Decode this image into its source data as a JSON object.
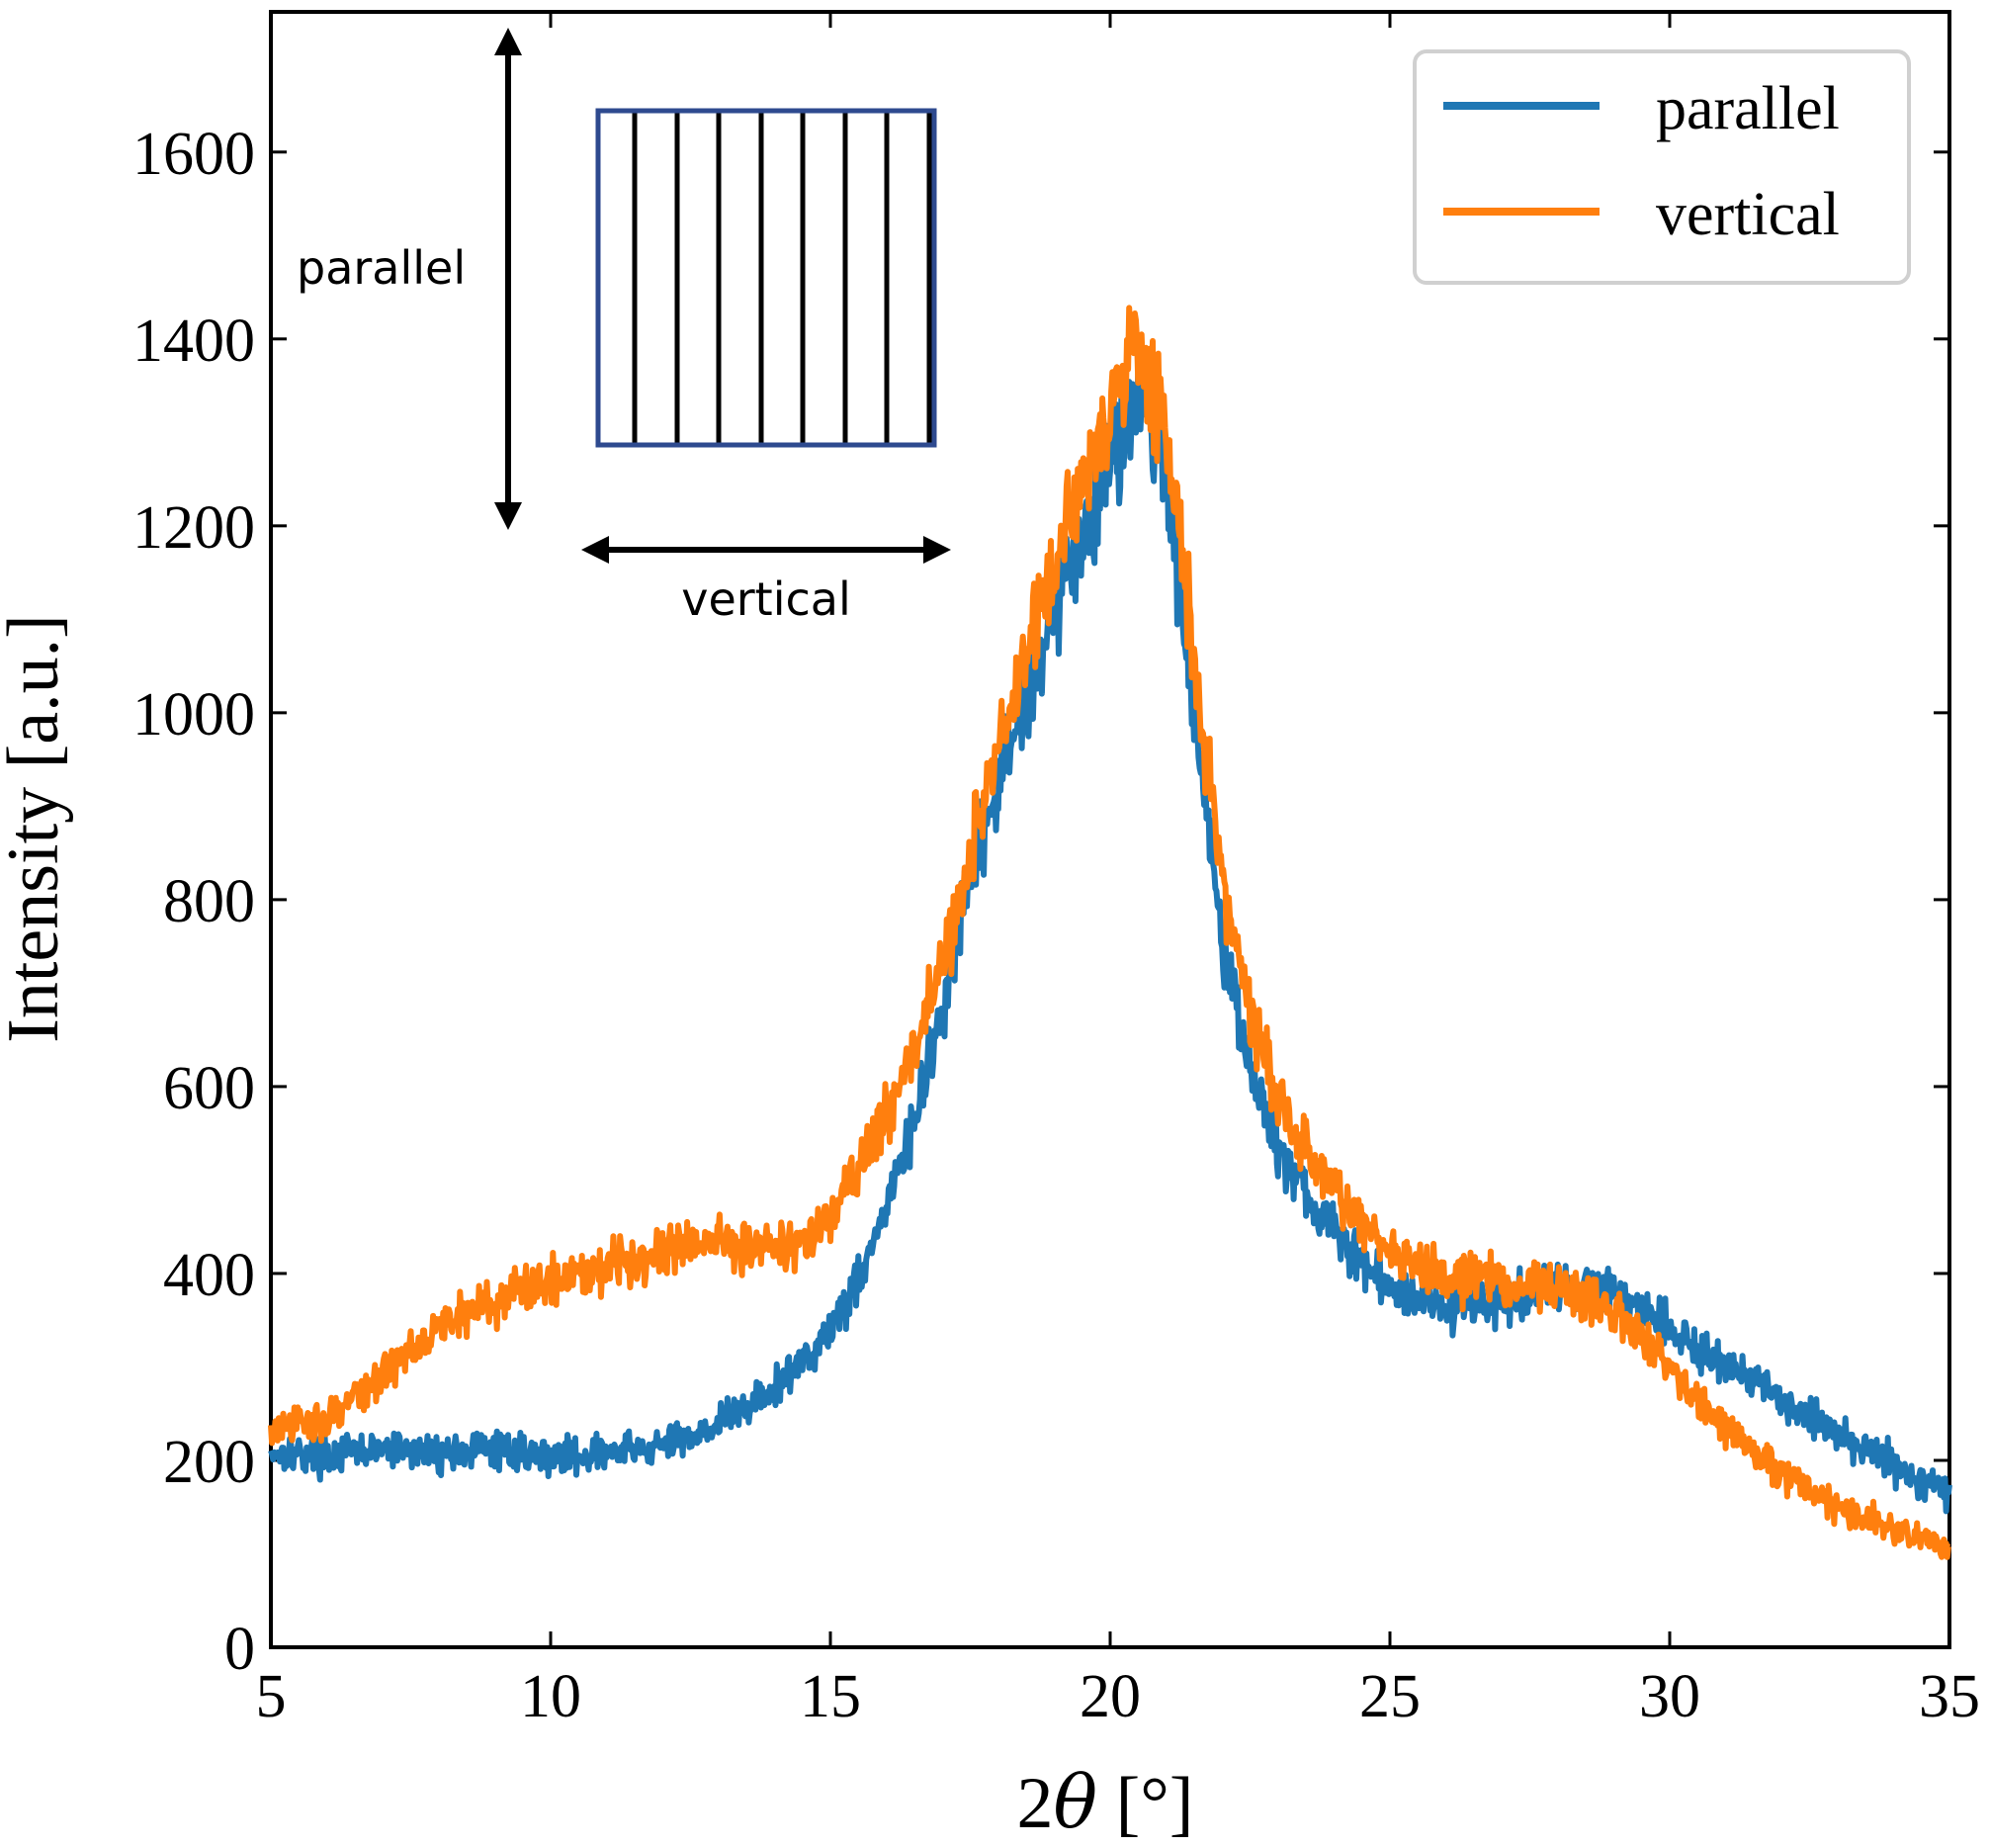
{
  "colors": {
    "parallel": "#1f77b4",
    "vertical": "#ff7f0e",
    "inset_frame": "#2e4a8f"
  },
  "inset": {
    "label_parallel": "parallel",
    "label_vertical": "vertical"
  },
  "chart_data": {
    "type": "line",
    "title": "",
    "xlabel_prefix": "2",
    "xlabel_symbol": "θ",
    "xlabel_unit": " [°]",
    "ylabel": "Intensity [a.u.]",
    "xlim": [
      5,
      35
    ],
    "ylim": [
      0,
      1750
    ],
    "xticks": [
      5,
      10,
      15,
      20,
      25,
      30,
      35
    ],
    "yticks": [
      0,
      200,
      400,
      600,
      800,
      1000,
      1200,
      1400,
      1600
    ],
    "legend_position": "top-right",
    "grid": false,
    "series": [
      {
        "name": "parallel",
        "color": "#1f77b4",
        "x": [
          5,
          6,
          7,
          8,
          9,
          10,
          11,
          12,
          13,
          14,
          15,
          15.5,
          16,
          16.5,
          17,
          17.5,
          18,
          18.5,
          19,
          19.5,
          20,
          20.5,
          21,
          21.5,
          22,
          22.5,
          23,
          23.5,
          24,
          24.5,
          25,
          26,
          27,
          28,
          29,
          30,
          31,
          32,
          33,
          34,
          35
        ],
        "y": [
          210,
          205,
          212,
          208,
          212,
          205,
          208,
          215,
          240,
          275,
          340,
          395,
          470,
          560,
          680,
          820,
          920,
          1020,
          1110,
          1190,
          1270,
          1340,
          1260,
          1010,
          760,
          620,
          535,
          485,
          445,
          410,
          385,
          365,
          370,
          385,
          385,
          340,
          300,
          265,
          230,
          195,
          165
        ]
      },
      {
        "name": "vertical",
        "color": "#ff7f0e",
        "x": [
          5,
          6,
          7,
          7.5,
          8,
          9,
          10,
          11,
          12,
          13,
          14,
          14.5,
          15,
          15.5,
          16,
          16.5,
          17,
          17.5,
          18,
          18.5,
          19,
          19.5,
          20,
          20.5,
          21,
          21.5,
          22,
          22.5,
          23,
          23.5,
          24,
          24.5,
          25,
          26,
          27,
          28,
          29,
          30,
          31,
          32,
          33,
          34,
          35
        ],
        "y": [
          230,
          245,
          290,
          320,
          345,
          370,
          395,
          410,
          425,
          435,
          430,
          430,
          460,
          510,
          570,
          640,
          730,
          850,
          960,
          1060,
          1150,
          1250,
          1330,
          1400,
          1300,
          1060,
          820,
          680,
          585,
          530,
          490,
          450,
          425,
          400,
          390,
          385,
          360,
          300,
          235,
          185,
          150,
          125,
          105
        ]
      }
    ]
  }
}
